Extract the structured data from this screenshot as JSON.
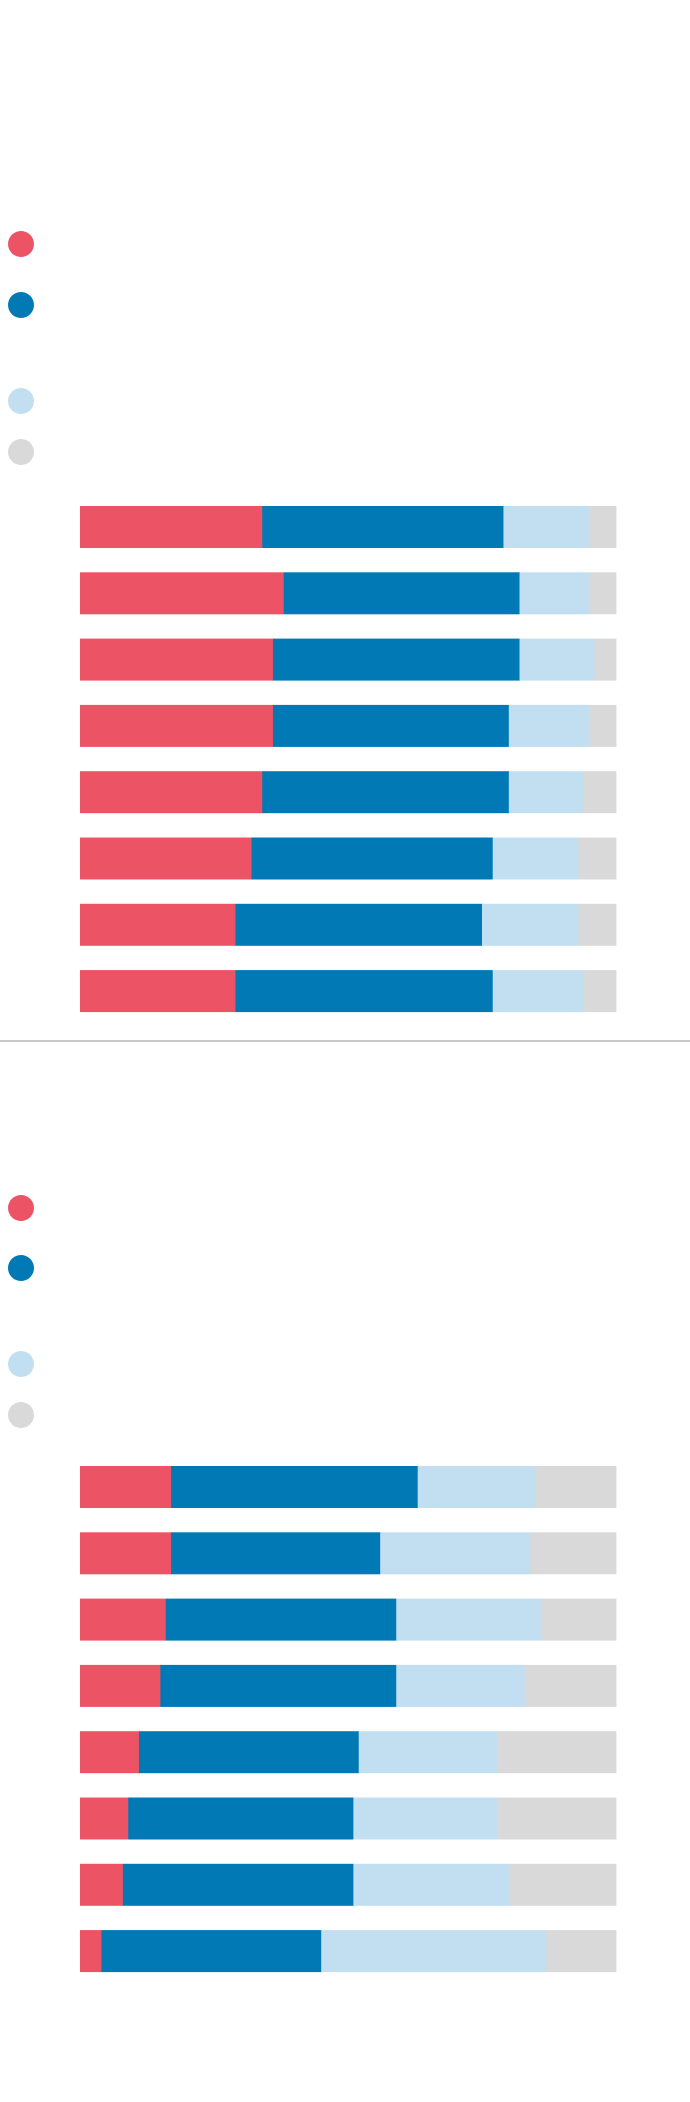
{
  "colors": {
    "seg1": "#ec5466",
    "seg2": "#0079b4",
    "seg3": "#c1dff1",
    "seg4": "#d9d9d9"
  },
  "chart_data": [
    {
      "type": "bar",
      "orientation": "horizontal",
      "stacked": true,
      "normalized": true,
      "xlim": [
        0,
        100
      ],
      "grid": false,
      "legend_position": "top-left",
      "categories": [
        "",
        "",
        "",
        "",
        "",
        "",
        "",
        ""
      ],
      "series": [
        {
          "label": "",
          "color": "#ec5466",
          "values": [
            34,
            38,
            36,
            36,
            34,
            32,
            29,
            29
          ]
        },
        {
          "label": "",
          "color": "#0079b4",
          "values": [
            45,
            44,
            46,
            44,
            46,
            45,
            46,
            48
          ]
        },
        {
          "label": "",
          "color": "#c1dff1",
          "values": [
            16,
            13,
            14,
            15,
            14,
            16,
            18,
            17
          ]
        },
        {
          "label": "",
          "color": "#d9d9d9",
          "values": [
            5,
            5,
            4,
            5,
            6,
            7,
            7,
            6
          ]
        }
      ]
    },
    {
      "type": "bar",
      "orientation": "horizontal",
      "stacked": true,
      "normalized": true,
      "xlim": [
        0,
        100
      ],
      "grid": false,
      "legend_position": "top-left",
      "categories": [
        "",
        "",
        "",
        "",
        "",
        "",
        "",
        ""
      ],
      "series": [
        {
          "label": "",
          "color": "#ec5466",
          "values": [
            17,
            17,
            16,
            15,
            11,
            9,
            8,
            4
          ]
        },
        {
          "label": "",
          "color": "#0079b4",
          "values": [
            46,
            39,
            43,
            44,
            41,
            42,
            43,
            41
          ]
        },
        {
          "label": "",
          "color": "#c1dff1",
          "values": [
            22,
            28,
            27,
            24,
            26,
            27,
            29,
            42
          ]
        },
        {
          "label": "",
          "color": "#d9d9d9",
          "values": [
            15,
            16,
            14,
            17,
            22,
            22,
            20,
            13
          ]
        }
      ]
    }
  ]
}
